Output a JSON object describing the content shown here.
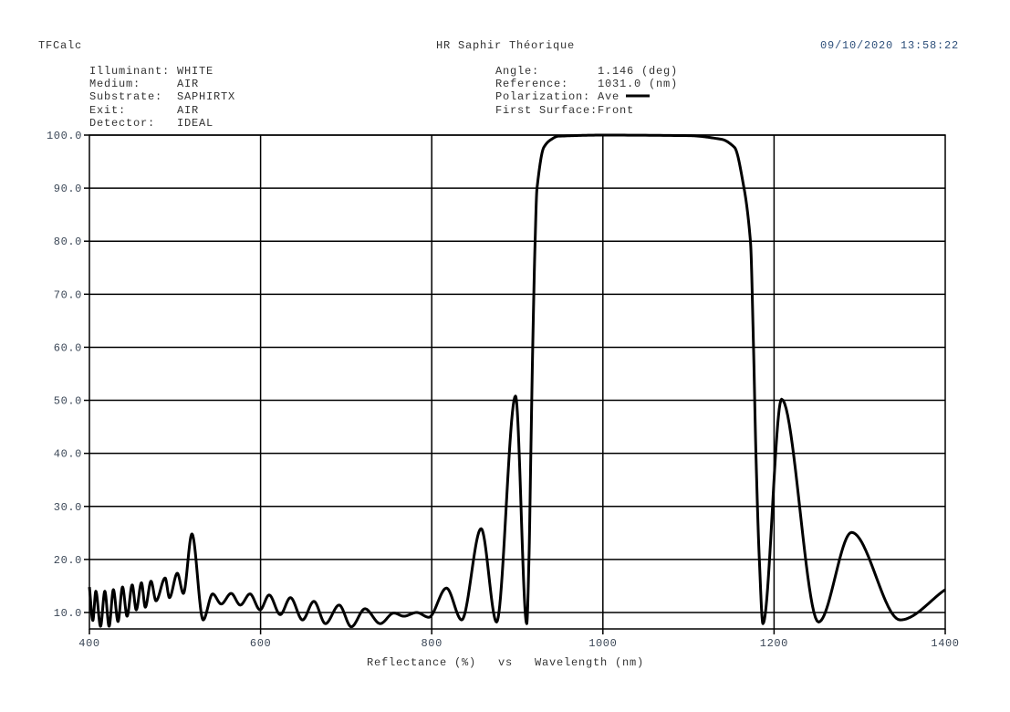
{
  "header": {
    "app_name": "TFCalc",
    "design_title": "HR Saphir Théorique",
    "datetime": "09/10/2020 13:58:22"
  },
  "info_left": [
    {
      "label": "Illuminant:",
      "value": "WHITE"
    },
    {
      "label": "Medium:",
      "value": "AIR"
    },
    {
      "label": "Substrate:",
      "value": "SAPHIRTX"
    },
    {
      "label": "Exit:",
      "value": "AIR"
    },
    {
      "label": "Detector:",
      "value": "IDEAL"
    }
  ],
  "info_right": [
    {
      "label": "Angle:",
      "value": "1.146 (deg)"
    },
    {
      "label": "Reference:",
      "value": "1031.0 (nm)"
    },
    {
      "label": "Polarization:",
      "value": "Ave"
    },
    {
      "label": "First Surface:",
      "value": "Front"
    }
  ],
  "colors": {
    "curve": "#000000",
    "grid": "#000000",
    "text": "#333333",
    "date": "#2d4f7a"
  },
  "chart_data": {
    "type": "line",
    "title": "HR Saphir Théorique",
    "xlabel": "Reflectance (%)   vs   Wavelength (nm)",
    "ylabel": "",
    "xlim": [
      400,
      1400
    ],
    "ylim": [
      6.9,
      100
    ],
    "grid": true,
    "x_ticks": [
      "400",
      "600",
      "800",
      "1000",
      "1200",
      "1400"
    ],
    "y_ticks": [
      "100.0",
      "90.0",
      "80.0",
      "70.0",
      "60.0",
      "50.0",
      "40.0",
      "30.0",
      "20.0",
      "10.0"
    ],
    "legend": {
      "entry": "Ave",
      "placement": "top-right"
    },
    "series": [
      {
        "name": "Ave",
        "points": [
          [
            400,
            14.8
          ],
          [
            404,
            8.5
          ],
          [
            407.5,
            14.0
          ],
          [
            413,
            7.4
          ],
          [
            418,
            14.0
          ],
          [
            423,
            7.4
          ],
          [
            428,
            14.3
          ],
          [
            433.4,
            8.3
          ],
          [
            438.7,
            14.8
          ],
          [
            444,
            9.3
          ],
          [
            450,
            15.2
          ],
          [
            454.7,
            10.5
          ],
          [
            460.8,
            15.6
          ],
          [
            465.3,
            11.0
          ],
          [
            472,
            15.9
          ],
          [
            477.8,
            12.2
          ],
          [
            488.5,
            16.5
          ],
          [
            493.5,
            12.8
          ],
          [
            502.7,
            17.4
          ],
          [
            509.8,
            13.6
          ],
          [
            519.8,
            24.8
          ],
          [
            532.9,
            8.6
          ],
          [
            544,
            13.5
          ],
          [
            554,
            11.6
          ],
          [
            565.6,
            13.6
          ],
          [
            576.3,
            11.4
          ],
          [
            587.6,
            13.5
          ],
          [
            599.4,
            10.5
          ],
          [
            610,
            13.3
          ],
          [
            623,
            9.6
          ],
          [
            634.9,
            12.8
          ],
          [
            649,
            8.6
          ],
          [
            662.3,
            12.1
          ],
          [
            675.8,
            7.9
          ],
          [
            691.8,
            11.4
          ],
          [
            706,
            7.3
          ],
          [
            722,
            10.7
          ],
          [
            739.8,
            7.9
          ],
          [
            755.7,
            9.9
          ],
          [
            767.4,
            9.3
          ],
          [
            782.4,
            10.0
          ],
          [
            796.6,
            9.1
          ],
          [
            817.2,
            14.6
          ],
          [
            835,
            8.6
          ],
          [
            857.7,
            25.8
          ],
          [
            875.8,
            8.2
          ],
          [
            897.9,
            50.8
          ],
          [
            911,
            7.9
          ],
          [
            913.6,
            20
          ],
          [
            915.8,
            40
          ],
          [
            918,
            60
          ],
          [
            920.8,
            80
          ],
          [
            923,
            90
          ],
          [
            931,
            97.7
          ],
          [
            938,
            99
          ],
          [
            948,
            99.8
          ],
          [
            1000,
            100
          ],
          [
            1100,
            99.9
          ],
          [
            1138.8,
            99.2
          ],
          [
            1153.7,
            97.7
          ],
          [
            1164.9,
            90
          ],
          [
            1172.4,
            80
          ],
          [
            1176,
            60
          ],
          [
            1178.8,
            40
          ],
          [
            1182.8,
            20
          ],
          [
            1187,
            7.9
          ],
          [
            1208.8,
            50.2
          ],
          [
            1252,
            8.2
          ],
          [
            1290.6,
            25.1
          ],
          [
            1347.4,
            8.6
          ],
          [
            1400,
            14.3
          ]
        ]
      }
    ]
  }
}
